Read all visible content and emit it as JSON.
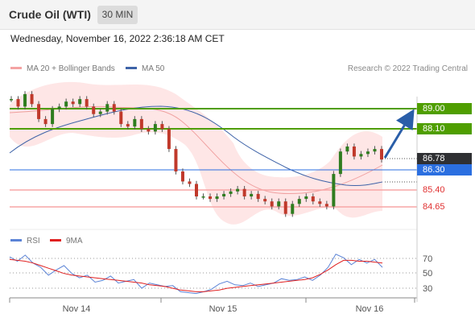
{
  "header": {
    "instrument": "Crude Oil (WTI)",
    "timeframe": "30 MIN"
  },
  "datetime": "Wednesday, November 16, 2022 2:36:18 AM CET",
  "legend": {
    "items": [
      {
        "label": "MA 20 + Bollinger Bands",
        "color": "#f4a3a3"
      },
      {
        "label": "MA 50",
        "color": "#3e63a8"
      }
    ],
    "credit": "Research © 2022 Trading Central"
  },
  "rsi_legend": [
    {
      "label": "RSI",
      "color": "#5b83d6"
    },
    {
      "label": "9MA",
      "color": "#e02020"
    }
  ],
  "colors": {
    "resistance": "#4f9e00",
    "support": "#f7a5a5",
    "current": "#2f3033",
    "ma50": "#2b6fe0",
    "arrow": "#2a5ea8"
  },
  "chart_data": [
    {
      "type": "line",
      "title": "",
      "x_ticks": [
        "Nov 14",
        "Nov 15",
        "Nov 16"
      ],
      "ylim": [
        84.3,
        89.3
      ],
      "levels": [
        {
          "label": "89.00",
          "value": 89.0,
          "kind": "resistance"
        },
        {
          "label": "88.10",
          "value": 88.1,
          "kind": "resistance"
        },
        {
          "label": "86.78",
          "value": 86.78,
          "kind": "current"
        },
        {
          "label": "86.30",
          "value": 86.3,
          "kind": "ma50"
        },
        {
          "label": "85.40",
          "value": 85.4,
          "kind": "support"
        },
        {
          "label": "84.65",
          "value": 84.65,
          "kind": "support"
        }
      ],
      "series": [
        {
          "name": "MA 20 + Bollinger Bands",
          "values": [
            89.0,
            88.8,
            88.7,
            88.7,
            88.8,
            88.9,
            88.9,
            88.8,
            88.6,
            88.3,
            87.9,
            87.4,
            86.8,
            86.3,
            85.9,
            85.6,
            85.5,
            85.5,
            85.6,
            85.9,
            86.2,
            86.6
          ]
        },
        {
          "name": "MA 50",
          "values": [
            87.1,
            87.5,
            87.9,
            88.3,
            88.6,
            88.8,
            88.9,
            88.9,
            88.8,
            88.6,
            88.3,
            87.9,
            87.5,
            87.1,
            86.8,
            86.5,
            86.3,
            86.1,
            85.9,
            85.8,
            85.8,
            85.9,
            86.0,
            86.1,
            86.2
          ]
        },
        {
          "name": "Price",
          "values": [
            89.2,
            88.9,
            89.4,
            89.0,
            88.4,
            88.2,
            88.8,
            88.9,
            89.1,
            89.0,
            89.2,
            88.9,
            88.6,
            88.7,
            89.0,
            88.7,
            88.2,
            88.1,
            88.4,
            88.0,
            87.9,
            88.2,
            88.0,
            87.2,
            86.3,
            85.9,
            85.8,
            85.3,
            85.3,
            85.2,
            85.3,
            85.4,
            85.5,
            85.6,
            85.3,
            85.4,
            85.2,
            85.1,
            84.9,
            85.1,
            84.6,
            85.0,
            85.2,
            85.3,
            85.1,
            85.0,
            84.9,
            86.2,
            87.1,
            87.3,
            86.9,
            87.0,
            87.1,
            87.2,
            86.78
          ]
        }
      ]
    },
    {
      "type": "line",
      "title": "",
      "x_ticks": [
        "Nov 14",
        "Nov 15",
        "Nov 16"
      ],
      "ylim": [
        20,
        80
      ],
      "y_ticks": [
        "70",
        "50",
        "30"
      ],
      "series": [
        {
          "name": "RSI",
          "values": [
            67,
            62,
            69,
            60,
            55,
            46,
            52,
            57,
            48,
            43,
            46,
            38,
            40,
            45,
            37,
            39,
            41,
            31,
            37,
            35,
            33,
            34,
            27,
            26,
            25,
            27,
            30,
            36,
            39,
            35,
            34,
            37,
            33,
            35,
            37,
            42,
            40,
            41,
            44,
            40,
            46,
            55,
            70,
            66,
            58,
            64,
            60,
            64,
            55
          ]
        },
        {
          "name": "9MA",
          "values": [
            64,
            63,
            62,
            60,
            57,
            54,
            51,
            48,
            46,
            45,
            44,
            43,
            42,
            41,
            40,
            39,
            38,
            37,
            35,
            34,
            33,
            31,
            29,
            28,
            27,
            27,
            28,
            29,
            31,
            32,
            33,
            34,
            35,
            36,
            37,
            38,
            39,
            40,
            41,
            43,
            47,
            52,
            58,
            63,
            63,
            62,
            62,
            61,
            60
          ]
        }
      ]
    }
  ]
}
